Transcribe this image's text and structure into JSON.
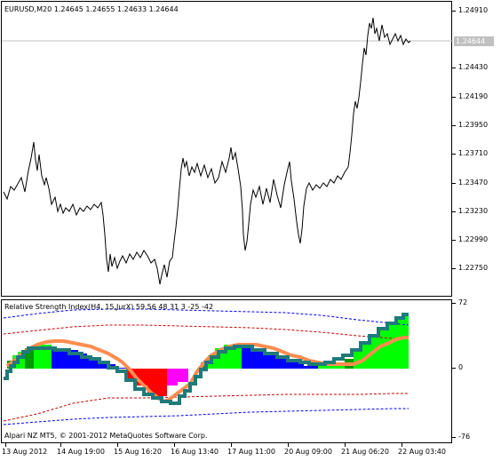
{
  "price_chart": {
    "header": "EURUSD,M20  1.24645 1.24655 1.24633 1.24644",
    "bid_label": "1.24644",
    "price_axis": [
      "1.24910",
      "1.24430",
      "1.24190",
      "1.23950",
      "1.23710",
      "1.23470",
      "1.23230",
      "1.22990",
      "1.22750"
    ]
  },
  "indicator": {
    "header": "Relative Strength Index(H4, 15,JurX) 59 56 48 31 3 -25 -42",
    "axis": [
      "72",
      "0",
      "-76"
    ],
    "copyright": "Alpari NZ MT5, © 2001-2012 MetaQuotes Software Corp."
  },
  "time_axis": [
    "13 Aug 2012",
    "14 Aug 19:00",
    "15 Aug 16:20",
    "16 Aug 13:40",
    "17 Aug 11:00",
    "20 Aug 09:00",
    "21 Aug 06:20",
    "22 Aug 03:40"
  ],
  "colors": {
    "bull_strong": "#00ff00",
    "bull_mid": "#009900",
    "bear_strong": "#ff0000",
    "bear_mid": "#ff00ff",
    "blue": "#0000ff",
    "orange_line": "#ff8c50",
    "teal_line": "#1f7a7a",
    "grid": "#c0c0c0"
  }
}
